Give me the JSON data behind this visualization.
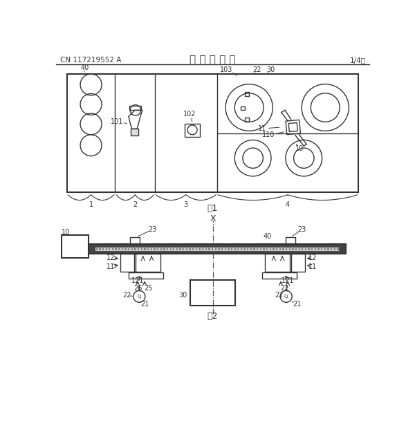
{
  "bg_color": "#ffffff",
  "line_color": "#333333",
  "header_text": "说 明 书 附 图",
  "header_left": "CN 117219552 A",
  "header_right": "1/4页",
  "fig1_label": "图1",
  "fig2_label": "图2",
  "title_fontsize": 11,
  "label_fontsize": 8,
  "small_fontsize": 7
}
